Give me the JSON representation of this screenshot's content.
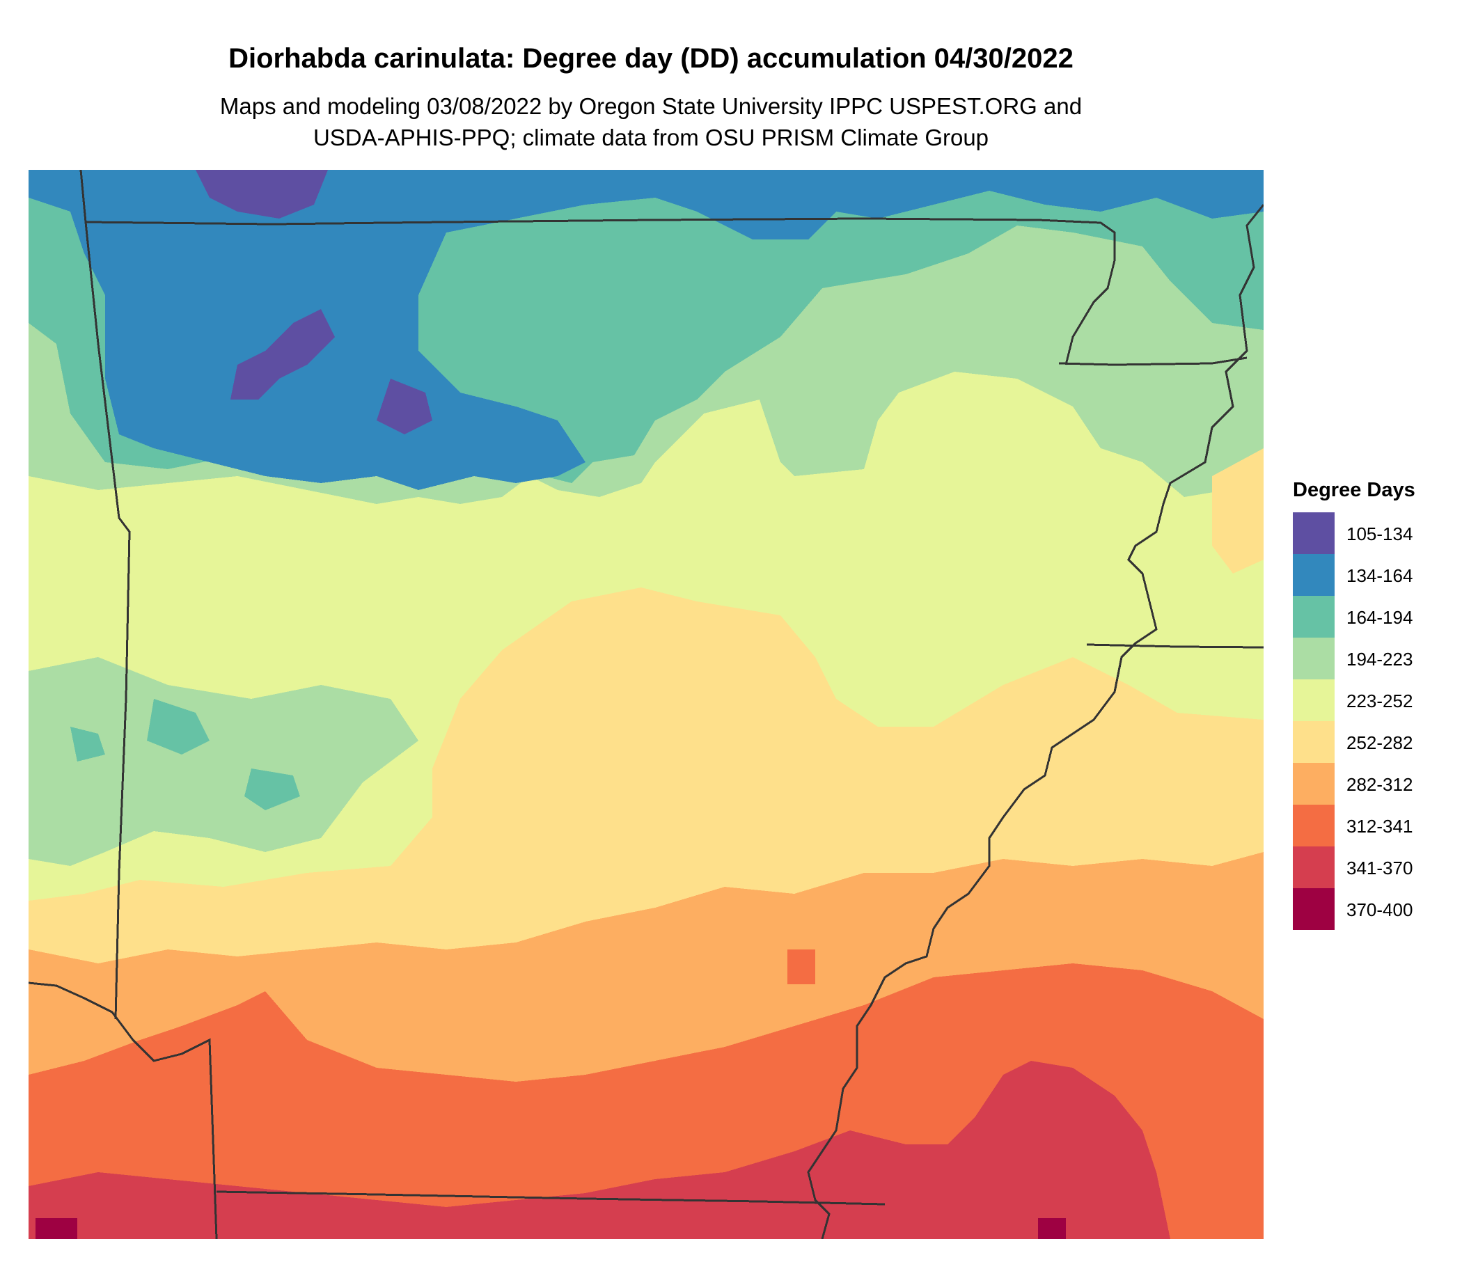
{
  "title": "Diorhabda carinulata: Degree day (DD) accumulation 04/30/2022",
  "subtitle_line1": "Maps and modeling 03/08/2022 by Oregon State University IPPC USPEST.ORG and",
  "subtitle_line2": "USDA-APHIS-PPQ; climate data from OSU PRISM Climate Group",
  "legend": {
    "title": "Degree Days",
    "items": [
      {
        "label": "105-134",
        "color": "#5e4fa2"
      },
      {
        "label": "134-164",
        "color": "#3288bd"
      },
      {
        "label": "164-194",
        "color": "#66c2a5"
      },
      {
        "label": "194-223",
        "color": "#abdda4"
      },
      {
        "label": "223-252",
        "color": "#e6f598"
      },
      {
        "label": "252-282",
        "color": "#fee08b"
      },
      {
        "label": "282-312",
        "color": "#fdae61"
      },
      {
        "label": "312-341",
        "color": "#f46d43"
      },
      {
        "label": "341-370",
        "color": "#d53e4f"
      },
      {
        "label": "370-400",
        "color": "#9e0142"
      }
    ]
  }
}
